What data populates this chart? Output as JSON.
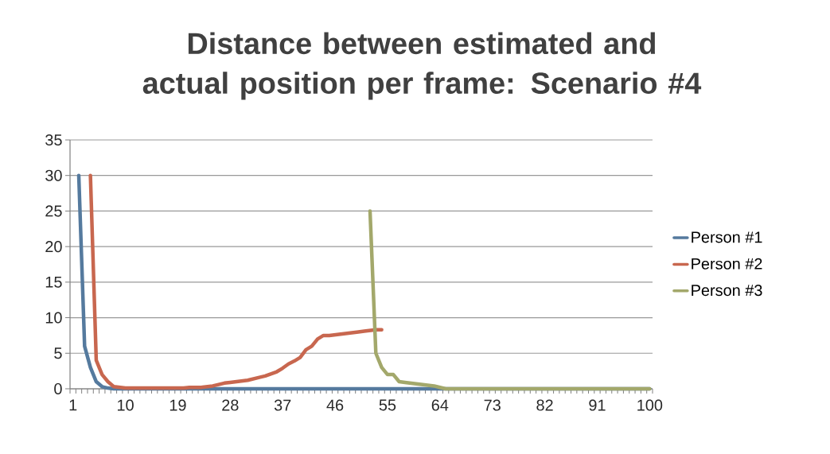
{
  "chart_data": {
    "type": "line",
    "title": "Distance between estimated and actual position per frame: Scenario #4",
    "categories": [
      "1",
      null,
      null,
      null,
      null,
      null,
      null,
      null,
      null,
      "10",
      null,
      null,
      null,
      null,
      null,
      null,
      null,
      null,
      "19",
      null,
      null,
      null,
      null,
      null,
      null,
      null,
      null,
      "28",
      null,
      null,
      null,
      null,
      null,
      null,
      null,
      null,
      "37",
      null,
      null,
      null,
      null,
      null,
      null,
      null,
      null,
      "46",
      null,
      null,
      null,
      null,
      null,
      null,
      null,
      null,
      "55",
      null,
      null,
      null,
      null,
      null,
      null,
      null,
      null,
      "64",
      null,
      null,
      null,
      null,
      null,
      null,
      null,
      null,
      "73",
      null,
      null,
      null,
      null,
      null,
      null,
      null,
      null,
      "82",
      null,
      null,
      null,
      null,
      null,
      null,
      null,
      null,
      "91",
      null,
      null,
      null,
      null,
      null,
      null,
      null,
      null,
      "100"
    ],
    "ylim": [
      0,
      35
    ],
    "yticks": [
      0,
      5,
      10,
      15,
      20,
      25,
      30,
      35
    ],
    "grid": "y",
    "legend": "right",
    "series": [
      {
        "name": "Person #1",
        "color": "#557a9e",
        "values": [
          null,
          30,
          6,
          3,
          1,
          0.3,
          0.1,
          0,
          0,
          0,
          0,
          0,
          0,
          0,
          0,
          0,
          0,
          0,
          0,
          0,
          0,
          0,
          0,
          0,
          0,
          0,
          0,
          0,
          0,
          0,
          0,
          0,
          0,
          0,
          0,
          0,
          0,
          0,
          0,
          0,
          0,
          0,
          0,
          0,
          0,
          0,
          0,
          0,
          0,
          0,
          0,
          0,
          0,
          0,
          0,
          0,
          0,
          0,
          0,
          0,
          0,
          0,
          0,
          0,
          0,
          0,
          0,
          0,
          0,
          0,
          0,
          0,
          0,
          0,
          0,
          0,
          0,
          0,
          0,
          0,
          0,
          0,
          0,
          0,
          0,
          0,
          0,
          0,
          0,
          0,
          0,
          0,
          0,
          0,
          0,
          0,
          0,
          0,
          0,
          0
        ]
      },
      {
        "name": "Person #2",
        "color": "#c8674f",
        "values": [
          null,
          null,
          null,
          30,
          4,
          2,
          1,
          0.3,
          0.2,
          0.1,
          0.1,
          0.1,
          0.1,
          0.1,
          0.1,
          0.1,
          0.1,
          0.1,
          0.1,
          0.1,
          0.2,
          0.2,
          0.2,
          0.3,
          0.4,
          0.6,
          0.8,
          0.9,
          1.0,
          1.1,
          1.2,
          1.4,
          1.6,
          1.8,
          2.1,
          2.4,
          2.9,
          3.5,
          3.9,
          4.4,
          5.5,
          6.0,
          7.0,
          7.5,
          7.5,
          7.6,
          7.7,
          7.8,
          7.9,
          8.0,
          8.1,
          8.2,
          8.3,
          8.3,
          null,
          null,
          null,
          null,
          null,
          null,
          null,
          null,
          null,
          null,
          null,
          null,
          null,
          null,
          null,
          null,
          null,
          null,
          null,
          null,
          null,
          null,
          null,
          null,
          null,
          null,
          null,
          null,
          null,
          null,
          null,
          null,
          null,
          null,
          null,
          null,
          null,
          null,
          null,
          null,
          null,
          null,
          null,
          null,
          null,
          null
        ]
      },
      {
        "name": "Person #3",
        "color": "#a3a86b",
        "values": [
          null,
          null,
          null,
          null,
          null,
          null,
          null,
          null,
          null,
          null,
          null,
          null,
          null,
          null,
          null,
          null,
          null,
          null,
          null,
          null,
          null,
          null,
          null,
          null,
          null,
          null,
          null,
          null,
          null,
          null,
          null,
          null,
          null,
          null,
          null,
          null,
          null,
          null,
          null,
          null,
          null,
          null,
          null,
          null,
          null,
          null,
          null,
          null,
          null,
          null,
          null,
          25,
          5,
          3,
          2,
          2,
          1,
          0.9,
          0.8,
          0.7,
          0.6,
          0.5,
          0.4,
          0.2,
          0,
          0,
          0,
          0,
          0,
          0,
          0,
          0,
          0,
          0,
          0,
          0,
          0,
          0,
          0,
          0,
          0,
          0,
          0,
          0,
          0,
          0,
          0,
          0,
          0,
          0,
          0,
          0,
          0,
          0,
          0,
          0,
          0,
          0,
          0,
          0
        ]
      }
    ]
  }
}
